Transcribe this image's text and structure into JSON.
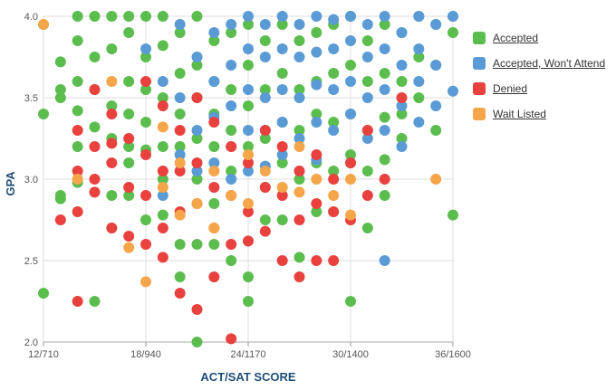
{
  "chart_data": {
    "type": "scatter",
    "xlabel": "ACT/SAT SCORE",
    "ylabel": "GPA",
    "x_tick_labels": [
      "12/710",
      "18/940",
      "24/1170",
      "30/1400",
      "36/1600"
    ],
    "x_ticks": [
      12,
      18,
      24,
      30,
      36
    ],
    "xlim": [
      12,
      36
    ],
    "y_tick_labels": [
      "2.0",
      "2.5",
      "3.0",
      "3.5",
      "4.0"
    ],
    "y_ticks": [
      2.0,
      2.5,
      3.0,
      3.5,
      4.0
    ],
    "ylim": [
      2.0,
      4.0
    ],
    "grid": true,
    "legend_position": "right",
    "series": [
      {
        "name": "Accepted",
        "color": "#5cbd4f",
        "points": [
          [
            12,
            3.95
          ],
          [
            12,
            3.4
          ],
          [
            12,
            2.3
          ],
          [
            13,
            3.72
          ],
          [
            13,
            3.55
          ],
          [
            13,
            3.5
          ],
          [
            13,
            2.9
          ],
          [
            13,
            2.88
          ],
          [
            14,
            4.0
          ],
          [
            14,
            3.85
          ],
          [
            14,
            3.6
          ],
          [
            14,
            3.42
          ],
          [
            14,
            3.2
          ],
          [
            14,
            2.98
          ],
          [
            15,
            4.0
          ],
          [
            15,
            3.75
          ],
          [
            15,
            3.55
          ],
          [
            15,
            3.32
          ],
          [
            15,
            2.25
          ],
          [
            16,
            4.0
          ],
          [
            16,
            3.8
          ],
          [
            16,
            3.45
          ],
          [
            16,
            3.25
          ],
          [
            16,
            2.9
          ],
          [
            16,
            2.7
          ],
          [
            17,
            4.0
          ],
          [
            17,
            3.9
          ],
          [
            17,
            3.6
          ],
          [
            17,
            3.4
          ],
          [
            17,
            3.2
          ],
          [
            17,
            3.1
          ],
          [
            17,
            2.9
          ],
          [
            18,
            4.0
          ],
          [
            18,
            3.75
          ],
          [
            18,
            3.55
          ],
          [
            18,
            3.35
          ],
          [
            18,
            3.18
          ],
          [
            18,
            2.75
          ],
          [
            19,
            4.0
          ],
          [
            19,
            3.82
          ],
          [
            19,
            3.5
          ],
          [
            19,
            3.2
          ],
          [
            19,
            3.0
          ],
          [
            19,
            2.78
          ],
          [
            20,
            3.9
          ],
          [
            20,
            3.65
          ],
          [
            20,
            3.4
          ],
          [
            20,
            3.2
          ],
          [
            20,
            2.6
          ],
          [
            20,
            2.4
          ],
          [
            21,
            4.0
          ],
          [
            21,
            3.7
          ],
          [
            21,
            3.5
          ],
          [
            21,
            3.25
          ],
          [
            21,
            3.0
          ],
          [
            21,
            2.6
          ],
          [
            21,
            2.0
          ],
          [
            22,
            3.85
          ],
          [
            22,
            3.6
          ],
          [
            22,
            3.4
          ],
          [
            22,
            3.2
          ],
          [
            22,
            2.85
          ],
          [
            22,
            2.6
          ],
          [
            23,
            3.9
          ],
          [
            23,
            3.55
          ],
          [
            23,
            3.3
          ],
          [
            23,
            3.05
          ],
          [
            23,
            2.5
          ],
          [
            24,
            3.95
          ],
          [
            24,
            3.7
          ],
          [
            24,
            3.45
          ],
          [
            24,
            3.2
          ],
          [
            24,
            2.4
          ],
          [
            24,
            2.25
          ],
          [
            25,
            3.85
          ],
          [
            25,
            3.55
          ],
          [
            25,
            3.25
          ],
          [
            25,
            2.95
          ],
          [
            25,
            2.75
          ],
          [
            26,
            3.95
          ],
          [
            26,
            3.65
          ],
          [
            26,
            3.35
          ],
          [
            26,
            3.1
          ],
          [
            26,
            2.75
          ],
          [
            27,
            3.85
          ],
          [
            27,
            3.55
          ],
          [
            27,
            3.3
          ],
          [
            27,
            3.0
          ],
          [
            27,
            2.52
          ],
          [
            28,
            3.9
          ],
          [
            28,
            3.6
          ],
          [
            28,
            3.4
          ],
          [
            28,
            3.1
          ],
          [
            28,
            2.8
          ],
          [
            29,
            3.95
          ],
          [
            29,
            3.65
          ],
          [
            29,
            3.35
          ],
          [
            29,
            3.05
          ],
          [
            29,
            2.8
          ],
          [
            30,
            4.0
          ],
          [
            30,
            3.7
          ],
          [
            30,
            3.4
          ],
          [
            30,
            3.15
          ],
          [
            30,
            2.25
          ],
          [
            31,
            3.85
          ],
          [
            31,
            3.6
          ],
          [
            31,
            3.3
          ],
          [
            31,
            3.05
          ],
          [
            31,
            2.7
          ],
          [
            32,
            3.95
          ],
          [
            32,
            3.65
          ],
          [
            32,
            3.38
          ],
          [
            32,
            3.12
          ],
          [
            32,
            2.9
          ],
          [
            33,
            3.9
          ],
          [
            33,
            3.6
          ],
          [
            33,
            3.4
          ],
          [
            33,
            3.25
          ],
          [
            34,
            4.0
          ],
          [
            34,
            3.75
          ],
          [
            34,
            3.5
          ],
          [
            35,
            3.95
          ],
          [
            35,
            3.7
          ],
          [
            35,
            3.3
          ],
          [
            36,
            4.0
          ],
          [
            36,
            3.9
          ],
          [
            36,
            2.78
          ]
        ]
      },
      {
        "name": "Accepted, Won't Attend",
        "color": "#5b9bd5",
        "points": [
          [
            18,
            3.8
          ],
          [
            19,
            3.6
          ],
          [
            19,
            2.9
          ],
          [
            20,
            3.95
          ],
          [
            20,
            3.5
          ],
          [
            20,
            3.15
          ],
          [
            21,
            3.75
          ],
          [
            21,
            3.3
          ],
          [
            21,
            3.05
          ],
          [
            22,
            3.9
          ],
          [
            22,
            3.6
          ],
          [
            22,
            3.38
          ],
          [
            22,
            3.1
          ],
          [
            23,
            3.95
          ],
          [
            23,
            3.7
          ],
          [
            23,
            3.45
          ],
          [
            23,
            3.2
          ],
          [
            23,
            3.0
          ],
          [
            24,
            4.0
          ],
          [
            24,
            3.8
          ],
          [
            24,
            3.55
          ],
          [
            24,
            3.3
          ],
          [
            24,
            3.05
          ],
          [
            24,
            2.62
          ],
          [
            25,
            3.95
          ],
          [
            25,
            3.75
          ],
          [
            25,
            3.5
          ],
          [
            25,
            3.3
          ],
          [
            25,
            3.08
          ],
          [
            26,
            4.0
          ],
          [
            26,
            3.8
          ],
          [
            26,
            3.55
          ],
          [
            26,
            3.35
          ],
          [
            26,
            3.15
          ],
          [
            27,
            3.95
          ],
          [
            27,
            3.75
          ],
          [
            27,
            3.5
          ],
          [
            27,
            3.25
          ],
          [
            27,
            3.05
          ],
          [
            28,
            4.0
          ],
          [
            28,
            3.78
          ],
          [
            28,
            3.58
          ],
          [
            28,
            3.35
          ],
          [
            28,
            3.12
          ],
          [
            29,
            3.98
          ],
          [
            29,
            3.8
          ],
          [
            29,
            3.55
          ],
          [
            29,
            3.3
          ],
          [
            30,
            4.0
          ],
          [
            30,
            3.85
          ],
          [
            30,
            3.6
          ],
          [
            30,
            3.4
          ],
          [
            30,
            3.1
          ],
          [
            31,
            3.95
          ],
          [
            31,
            3.75
          ],
          [
            31,
            3.5
          ],
          [
            31,
            3.25
          ],
          [
            32,
            4.0
          ],
          [
            32,
            3.8
          ],
          [
            32,
            3.55
          ],
          [
            32,
            3.3
          ],
          [
            32,
            2.5
          ],
          [
            33,
            3.9
          ],
          [
            33,
            3.7
          ],
          [
            33,
            3.45
          ],
          [
            33,
            3.2
          ],
          [
            34,
            4.0
          ],
          [
            34,
            3.8
          ],
          [
            34,
            3.6
          ],
          [
            34,
            3.35
          ],
          [
            35,
            3.95
          ],
          [
            35,
            3.7
          ],
          [
            35,
            3.45
          ],
          [
            36,
            4.0
          ],
          [
            36,
            3.54
          ]
        ]
      },
      {
        "name": "Denied",
        "color": "#e8413e",
        "points": [
          [
            13,
            2.75
          ],
          [
            14,
            3.3
          ],
          [
            14,
            3.05
          ],
          [
            14,
            2.8
          ],
          [
            14,
            2.25
          ],
          [
            15,
            3.55
          ],
          [
            15,
            3.2
          ],
          [
            15,
            3.0
          ],
          [
            15,
            2.92
          ],
          [
            16,
            3.4
          ],
          [
            16,
            3.22
          ],
          [
            16,
            3.1
          ],
          [
            16,
            2.7
          ],
          [
            17,
            3.25
          ],
          [
            17,
            2.95
          ],
          [
            17,
            2.65
          ],
          [
            18,
            3.6
          ],
          [
            18,
            3.15
          ],
          [
            18,
            2.9
          ],
          [
            18,
            2.6
          ],
          [
            19,
            3.45
          ],
          [
            19,
            3.05
          ],
          [
            19,
            2.7
          ],
          [
            19,
            2.52
          ],
          [
            20,
            3.3
          ],
          [
            20,
            3.05
          ],
          [
            20,
            2.8
          ],
          [
            20,
            2.3
          ],
          [
            21,
            3.5
          ],
          [
            21,
            3.1
          ],
          [
            21,
            2.85
          ],
          [
            21,
            2.2
          ],
          [
            22,
            3.35
          ],
          [
            22,
            2.95
          ],
          [
            22,
            2.7
          ],
          [
            22,
            2.4
          ],
          [
            23,
            3.2
          ],
          [
            23,
            2.9
          ],
          [
            23,
            2.6
          ],
          [
            23,
            2.02
          ],
          [
            24,
            3.1
          ],
          [
            24,
            2.8
          ],
          [
            24,
            2.62
          ],
          [
            25,
            3.3
          ],
          [
            25,
            2.95
          ],
          [
            25,
            2.68
          ],
          [
            26,
            3.2
          ],
          [
            26,
            2.9
          ],
          [
            26,
            2.5
          ],
          [
            27,
            3.05
          ],
          [
            27,
            2.75
          ],
          [
            27,
            2.4
          ],
          [
            28,
            3.15
          ],
          [
            28,
            2.85
          ],
          [
            28,
            2.5
          ],
          [
            29,
            3.0
          ],
          [
            29,
            2.8
          ],
          [
            29,
            2.5
          ],
          [
            30,
            3.1
          ],
          [
            30,
            2.75
          ],
          [
            31,
            3.3
          ],
          [
            31,
            2.9
          ],
          [
            32,
            3.0
          ],
          [
            33,
            3.5
          ]
        ]
      },
      {
        "name": "Wait Listed",
        "color": "#f5a54a",
        "points": [
          [
            12,
            3.95
          ],
          [
            14,
            3.0
          ],
          [
            16,
            3.6
          ],
          [
            17,
            2.58
          ],
          [
            18,
            2.37
          ],
          [
            19,
            3.32
          ],
          [
            19,
            2.95
          ],
          [
            20,
            3.1
          ],
          [
            20,
            2.78
          ],
          [
            21,
            2.85
          ],
          [
            22,
            3.05
          ],
          [
            22,
            2.7
          ],
          [
            23,
            2.9
          ],
          [
            24,
            3.15
          ],
          [
            24,
            2.85
          ],
          [
            25,
            3.05
          ],
          [
            26,
            2.95
          ],
          [
            27,
            2.92
          ],
          [
            27,
            3.2
          ],
          [
            28,
            3.0
          ],
          [
            29,
            2.9
          ],
          [
            30,
            2.78
          ],
          [
            30,
            3.0
          ],
          [
            35,
            3.0
          ]
        ]
      }
    ]
  }
}
